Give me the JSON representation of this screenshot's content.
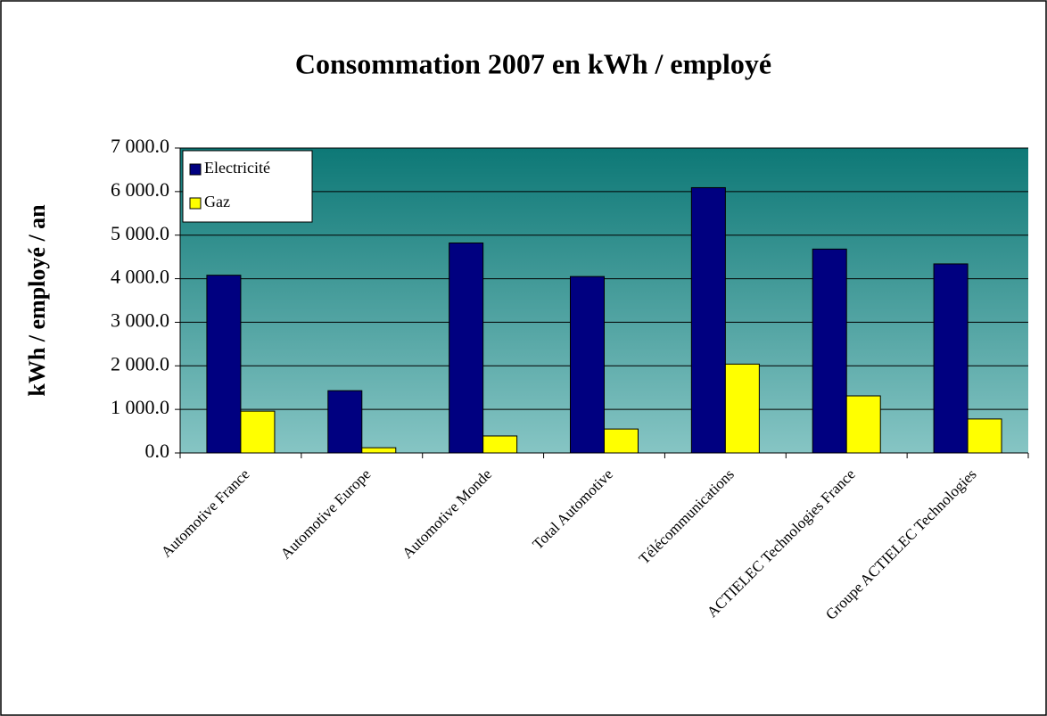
{
  "chart_data": {
    "type": "bar",
    "title": "Consommation 2007 en kWh / employé",
    "y_label": "kWh / employé / an",
    "categories": [
      "Automotive France",
      "Automotive Europe",
      "Automotive Monde",
      "Total Automotive",
      "Télécommunications",
      "ACTIELEC Technologies France",
      "Groupe ACTIELEC Technologies"
    ],
    "series": [
      {
        "name": "Electricité",
        "color": "#000080",
        "values": [
          4080,
          1430,
          4820,
          4050,
          6090,
          4680,
          4340
        ]
      },
      {
        "name": "Gaz",
        "color": "#ffff00",
        "values": [
          960,
          120,
          390,
          550,
          2040,
          1310,
          780
        ]
      }
    ],
    "ylim": [
      0,
      7000
    ],
    "yticks": [
      {
        "value": 0,
        "label": "0.0"
      },
      {
        "value": 1000,
        "label": "1 000.0"
      },
      {
        "value": 2000,
        "label": "2 000.0"
      },
      {
        "value": 3000,
        "label": "3 000.0"
      },
      {
        "value": 4000,
        "label": "4 000.0"
      },
      {
        "value": 5000,
        "label": "5 000.0"
      },
      {
        "value": 6000,
        "label": "6 000.0"
      },
      {
        "value": 7000,
        "label": "7 000.0"
      }
    ],
    "grid": true,
    "legend": "upper left"
  }
}
